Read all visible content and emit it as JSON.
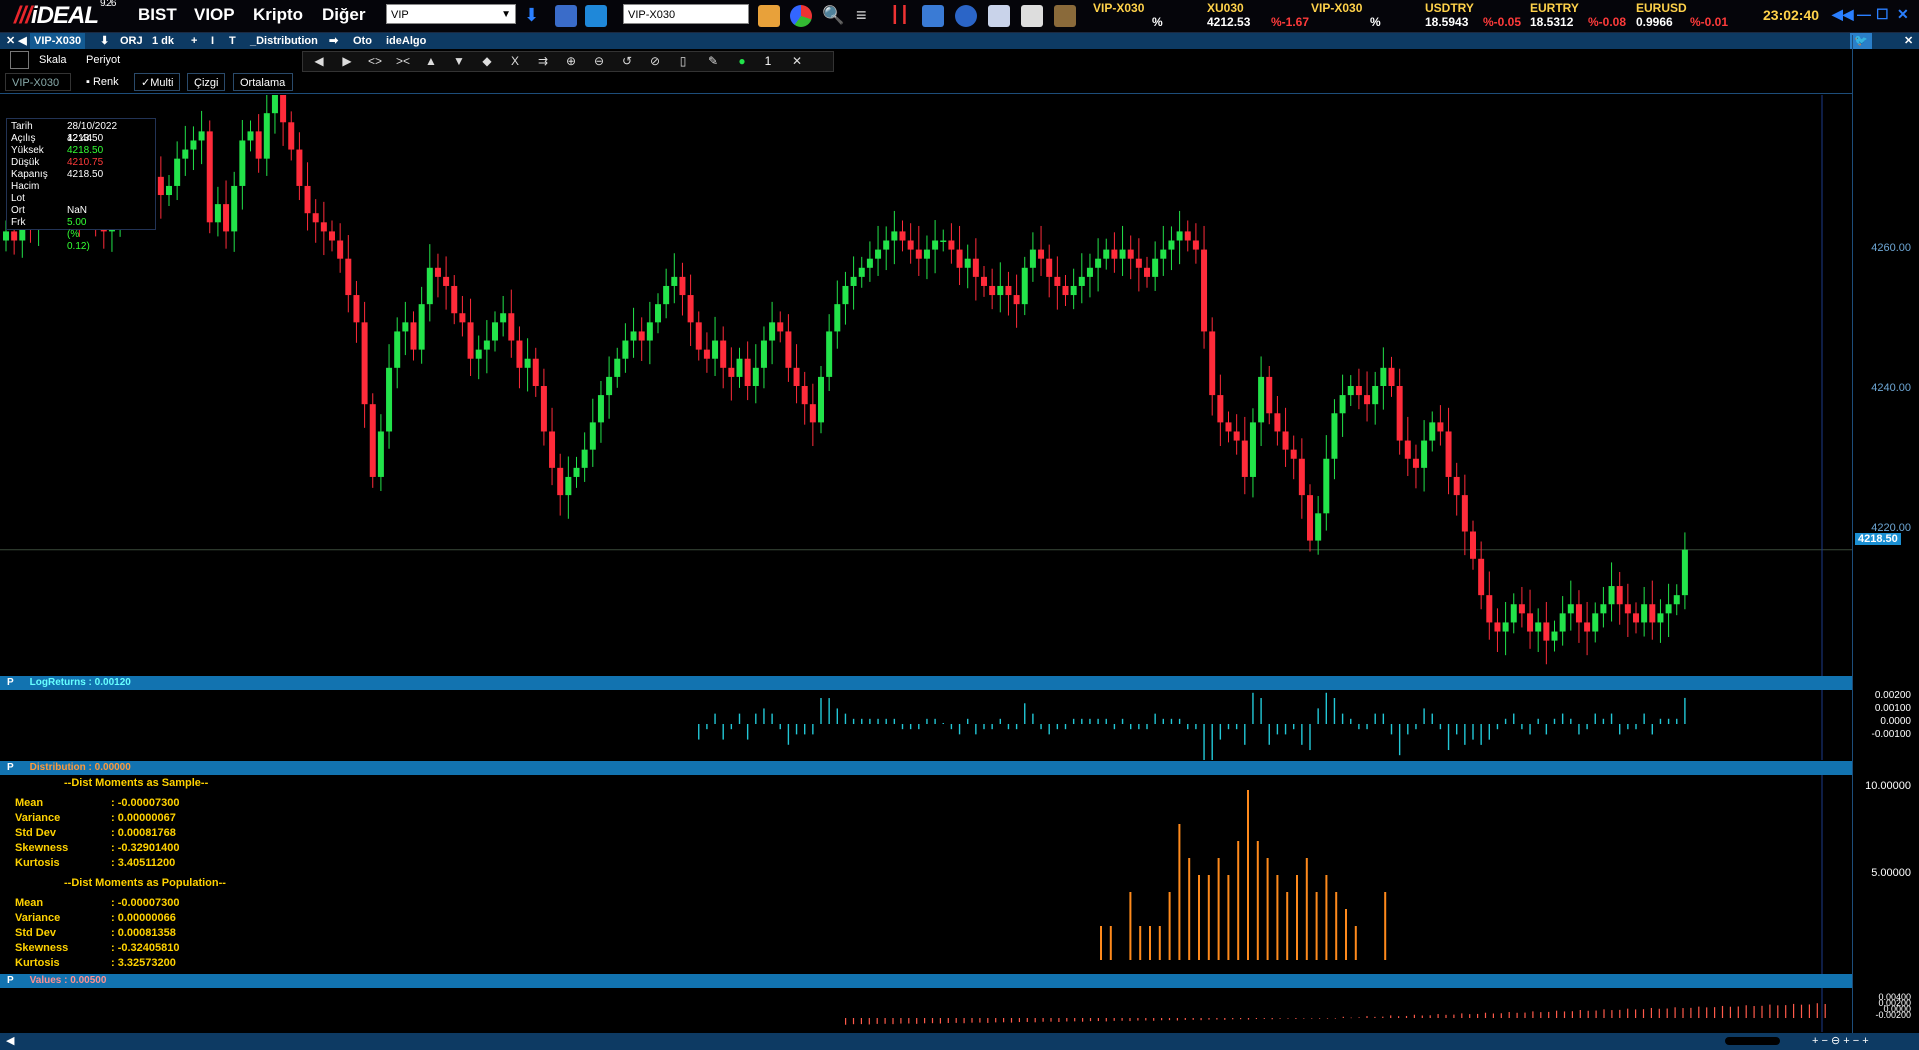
{
  "app": {
    "logo": "iDEAL",
    "version": "9.26",
    "menu": [
      "BIST",
      "VIOP",
      "Kripto",
      "Diğer"
    ],
    "market_combo": "VIP",
    "symbol_input": "VIP-X030",
    "clock": "23:02:40"
  },
  "tickers": [
    {
      "name": "VIP-X030",
      "value": "",
      "change": "%"
    },
    {
      "name": "XU030",
      "value": "4212.53",
      "change": "%-1.67"
    },
    {
      "name": "VIP-X030",
      "value": "",
      "change": "%"
    },
    {
      "name": "USDTRY",
      "value": "18.5943",
      "change": "%-0.05"
    },
    {
      "name": "EURTRY",
      "value": "18.5312",
      "change": "%-0.08"
    },
    {
      "name": "EURUSD",
      "value": "0.9966",
      "change": "%-0.01"
    }
  ],
  "tabbar": [
    "VIP-X030",
    "ORJ",
    "1 dk",
    "+",
    "I",
    "T",
    "_Distribution",
    "Oto",
    "ideAlgo"
  ],
  "toolbar": {
    "skala": "Skala",
    "periyot": "Periyot",
    "symbol": "VIP-X030",
    "renk": "Renk",
    "multi": "✓Multi",
    "cizgi": "Çizgi",
    "ortalama": "Ortalama",
    "draw_count": "1"
  },
  "info_box": [
    {
      "label": "Tarih",
      "value": "28/10/2022 12:44",
      "color": "#ffffff"
    },
    {
      "label": "Açılış",
      "value": "4213.50",
      "color": "#ffffff"
    },
    {
      "label": "Yüksek",
      "value": "4218.50",
      "color": "#33ff33"
    },
    {
      "label": "Düşük",
      "value": "4210.75",
      "color": "#ff3b3b"
    },
    {
      "label": "Kapanış",
      "value": "4218.50",
      "color": "#ffffff"
    },
    {
      "label": "Hacim",
      "value": "",
      "color": "#ffffff"
    },
    {
      "label": "Lot",
      "value": "",
      "color": "#ffffff"
    },
    {
      "label": "Ort",
      "value": "NaN",
      "color": "#ffffff"
    },
    {
      "label": "Frk",
      "value": "5.00 (% 0.12)",
      "color": "#33ff33"
    }
  ],
  "main_axis": {
    "labels": [
      "4260.00",
      "4240.00",
      "4220.00"
    ],
    "last_price": "4218.50"
  },
  "panels": {
    "logreturns": {
      "p": "P",
      "title": "LogReturns : 0.00120",
      "axis": [
        "0.00200",
        "0.00100",
        "0.0000",
        "-0.00100"
      ]
    },
    "distribution": {
      "p": "P",
      "title": "Distribution : 0.00000",
      "axis": [
        "10.00000",
        "5.00000"
      ]
    },
    "values": {
      "p": "P",
      "title": "Values : 0.00500",
      "axis": [
        "0.00400",
        "0.00200",
        "0.0000",
        "-0.00200"
      ]
    }
  },
  "stats": {
    "sample_header": "--Dist Moments as Sample--",
    "sample": [
      {
        "label": "Mean",
        "value": ": -0.00007300"
      },
      {
        "label": "Variance",
        "value": ": 0.00000067"
      },
      {
        "label": "Std Dev",
        "value": ": 0.00081768"
      },
      {
        "label": "Skewness",
        "value": ": -0.32901400"
      },
      {
        "label": "Kurtosis",
        "value": ": 3.40511200"
      }
    ],
    "population_header": "--Dist Moments as Population--",
    "population": [
      {
        "label": "Mean",
        "value": ": -0.00007300"
      },
      {
        "label": "Variance",
        "value": ": 0.00000066"
      },
      {
        "label": "Std Dev",
        "value": ": 0.00081358"
      },
      {
        "label": "Skewness",
        "value": ": -0.32405810"
      },
      {
        "label": "Kurtosis",
        "value": ": 3.32573200"
      }
    ]
  },
  "colors": {
    "up": "#22e34a",
    "down": "#ff2b3a",
    "cyan": "#22c7d6",
    "orange": "#ff8a1c",
    "panel_bar": "#1273b0",
    "yellow": "#ffd200"
  },
  "chart_data": {
    "type": "candlestick",
    "ylim": [
      4204,
      4268
    ],
    "closes": [
      4253,
      4252,
      4255,
      4254,
      4256,
      4258,
      4259,
      4258,
      4257,
      4255,
      4256,
      4254,
      4253,
      4255,
      4256,
      4258,
      4259,
      4260,
      4259,
      4257,
      4258,
      4261,
      4262,
      4263,
      4264,
      4254,
      4256,
      4253,
      4258,
      4263,
      4264,
      4261,
      4266,
      4268,
      4265,
      4262,
      4258,
      4255,
      4254,
      4253,
      4252,
      4250,
      4246,
      4243,
      4234,
      4226,
      4231,
      4238,
      4242,
      4243,
      4240,
      4245,
      4249,
      4248,
      4247,
      4244,
      4243,
      4239,
      4240,
      4241,
      4243,
      4244,
      4241,
      4238,
      4239,
      4236,
      4231,
      4227,
      4224,
      4226,
      4227,
      4229,
      4232,
      4235,
      4237,
      4239,
      4241,
      4242,
      4241,
      4243,
      4245,
      4247,
      4248,
      4246,
      4243,
      4240,
      4239,
      4241,
      4238,
      4237,
      4239,
      4236,
      4238,
      4241,
      4243,
      4242,
      4238,
      4236,
      4234,
      4232,
      4237,
      4242,
      4245,
      4247,
      4248,
      4249,
      4250,
      4251,
      4252,
      4253,
      4252,
      4251,
      4250,
      4251,
      4252,
      4252,
      4251,
      4249,
      4250,
      4248,
      4247,
      4246,
      4247,
      4246,
      4245,
      4249,
      4251,
      4250,
      4248,
      4247,
      4246,
      4247,
      4248,
      4249,
      4250,
      4251,
      4250,
      4251,
      4250,
      4249,
      4248,
      4250,
      4251,
      4252,
      4253,
      4252,
      4251,
      4242,
      4235,
      4232,
      4231,
      4230,
      4226,
      4232,
      4237,
      4233,
      4231,
      4229,
      4228,
      4224,
      4219,
      4222,
      4228,
      4233,
      4235,
      4236,
      4235,
      4234,
      4236,
      4238,
      4236,
      4230,
      4228,
      4227,
      4230,
      4232,
      4231,
      4226,
      4224,
      4220,
      4217,
      4213,
      4210,
      4209,
      4210,
      4212,
      4211,
      4209,
      4210,
      4208,
      4209,
      4211,
      4212,
      4210,
      4209,
      4211,
      4212,
      4214,
      4212,
      4211,
      4210,
      4212,
      4210,
      4211,
      4212,
      4213,
      4218
    ]
  },
  "dist_data": {
    "values": [
      2,
      2,
      0,
      4,
      2,
      2,
      2,
      4,
      8,
      6,
      5,
      5,
      6,
      5,
      7,
      10,
      7,
      6,
      5,
      4,
      5,
      6,
      4,
      5,
      4,
      3,
      2,
      0,
      0,
      4
    ]
  }
}
